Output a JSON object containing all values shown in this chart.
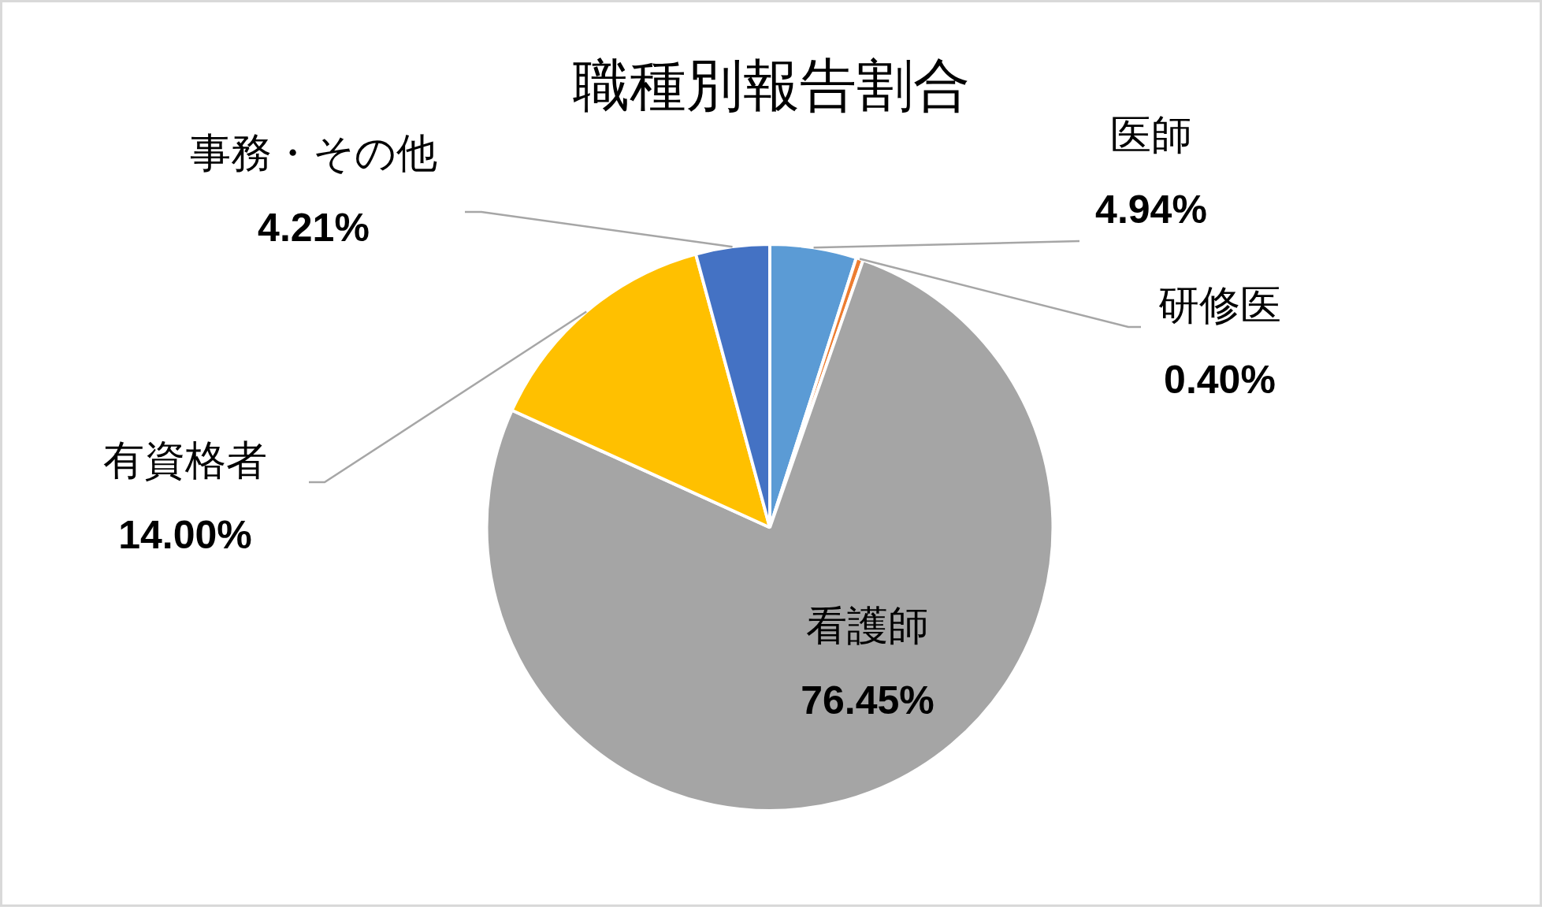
{
  "chart_data": {
    "type": "pie",
    "title": "職種別報告割合",
    "categories": [
      "医師",
      "研修医",
      "看護師",
      "有資格者",
      "事務・その他"
    ],
    "values": [
      4.94,
      0.4,
      76.45,
      14.0,
      4.21
    ],
    "colors": [
      "#5b9bd5",
      "#ed7d31",
      "#a5a5a5",
      "#ffc000",
      "#4472c4"
    ],
    "value_labels": [
      "4.94%",
      "0.40%",
      "76.45%",
      "14.00%",
      "4.21%"
    ],
    "legend": false
  }
}
